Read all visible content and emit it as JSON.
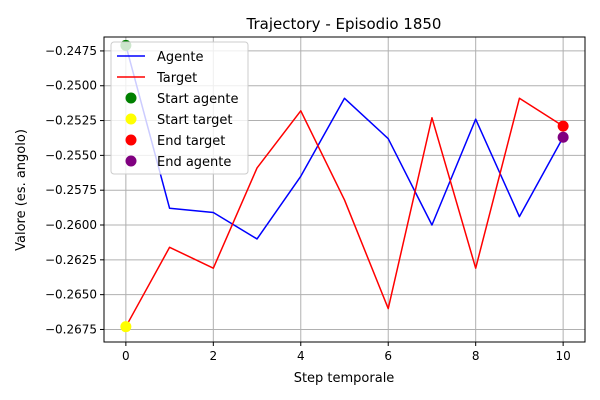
{
  "chart_data": {
    "type": "line",
    "title": "Trajectory - Episodio 1850",
    "xlabel": "Step temporale",
    "ylabel": "Valore (es. angolo)",
    "xlim": [
      -0.5,
      10.5
    ],
    "ylim": [
      -0.2684,
      -0.2465
    ],
    "xticks": [
      0,
      2,
      4,
      6,
      8,
      10
    ],
    "yticks": [
      -0.2675,
      -0.265,
      -0.2625,
      -0.26,
      -0.2575,
      -0.255,
      -0.2525,
      -0.25,
      -0.2475
    ],
    "xtick_labels": [
      "0",
      "2",
      "4",
      "6",
      "8",
      "10"
    ],
    "ytick_labels": [
      "−0.2675",
      "−0.2650",
      "−0.2625",
      "−0.2600",
      "−0.2575",
      "−0.2550",
      "−0.2525",
      "−0.2500",
      "−0.2475"
    ],
    "grid": true,
    "legend_position": "top-left",
    "series": [
      {
        "name": "Agente",
        "color": "#0000ff",
        "x": [
          0,
          1,
          2,
          3,
          4,
          5,
          6,
          7,
          8,
          9,
          10
        ],
        "y": [
          -0.2471,
          -0.2588,
          -0.2591,
          -0.261,
          -0.2565,
          -0.2509,
          -0.2538,
          -0.26,
          -0.2524,
          -0.2594,
          -0.2537
        ]
      },
      {
        "name": "Target",
        "color": "#ff0000",
        "x": [
          0,
          1,
          2,
          3,
          4,
          5,
          6,
          7,
          8,
          9,
          10
        ],
        "y": [
          -0.2673,
          -0.2616,
          -0.2631,
          -0.2559,
          -0.2518,
          -0.2582,
          -0.266,
          -0.2523,
          -0.2631,
          -0.2509,
          -0.2529
        ]
      }
    ],
    "markers": [
      {
        "name": "Start agente",
        "color": "#008000",
        "x": 0,
        "y": -0.2471
      },
      {
        "name": "Start target",
        "color": "#ffff00",
        "x": 0,
        "y": -0.2673
      },
      {
        "name": "End target",
        "color": "#ff0000",
        "x": 10,
        "y": -0.2529
      },
      {
        "name": "End agente",
        "color": "#800080",
        "x": 10,
        "y": -0.2537
      }
    ]
  }
}
